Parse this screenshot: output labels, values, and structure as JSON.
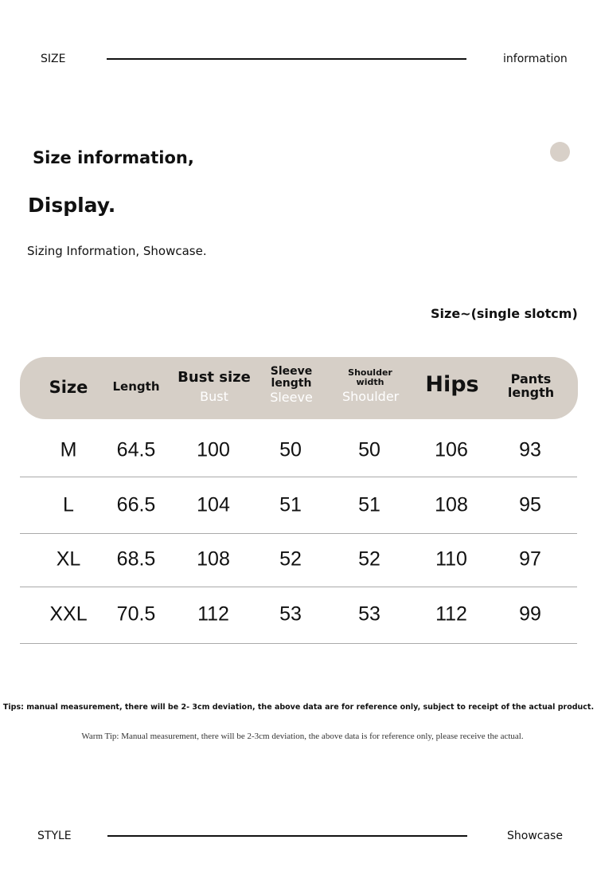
{
  "top_bar": {
    "left": "SIZE",
    "right": "information"
  },
  "title_line1": "Size information,",
  "title_line2": "Display.",
  "subtitle": "Sizing Information, Showcase.",
  "unit_note": "Size~(single slotcm)",
  "accent_color": "#d6cfc7",
  "table": {
    "headers": [
      {
        "label": "Size",
        "sub": ""
      },
      {
        "label": "Length",
        "sub": ""
      },
      {
        "label": "Bust size",
        "sub": "Bust"
      },
      {
        "label": "Sleeve length",
        "sub": "Sleeve"
      },
      {
        "label": "Shoulder width",
        "sub": "Shoulder"
      },
      {
        "label": "Hips",
        "sub": ""
      },
      {
        "label": "Pants length",
        "sub": ""
      }
    ],
    "rows": [
      [
        "M",
        "64.5",
        "100",
        "50",
        "50",
        "106",
        "93"
      ],
      [
        "L",
        "66.5",
        "104",
        "51",
        "51",
        "108",
        "95"
      ],
      [
        "XL",
        "68.5",
        "108",
        "52",
        "52",
        "110",
        "97"
      ],
      [
        "XXL",
        "70.5",
        "112",
        "53",
        "53",
        "112",
        "99"
      ]
    ]
  },
  "tip_en": "Tips: manual measurement, there will be 2- 3cm deviation, the above data are for reference only, subject to receipt of the actual product.",
  "tip_warm": "Warm Tip: Manual measurement, there will be 2-3cm deviation, the above data is for reference only, please receive the actual.",
  "bottom_bar": {
    "left": "STYLE",
    "right": "Showcase"
  }
}
